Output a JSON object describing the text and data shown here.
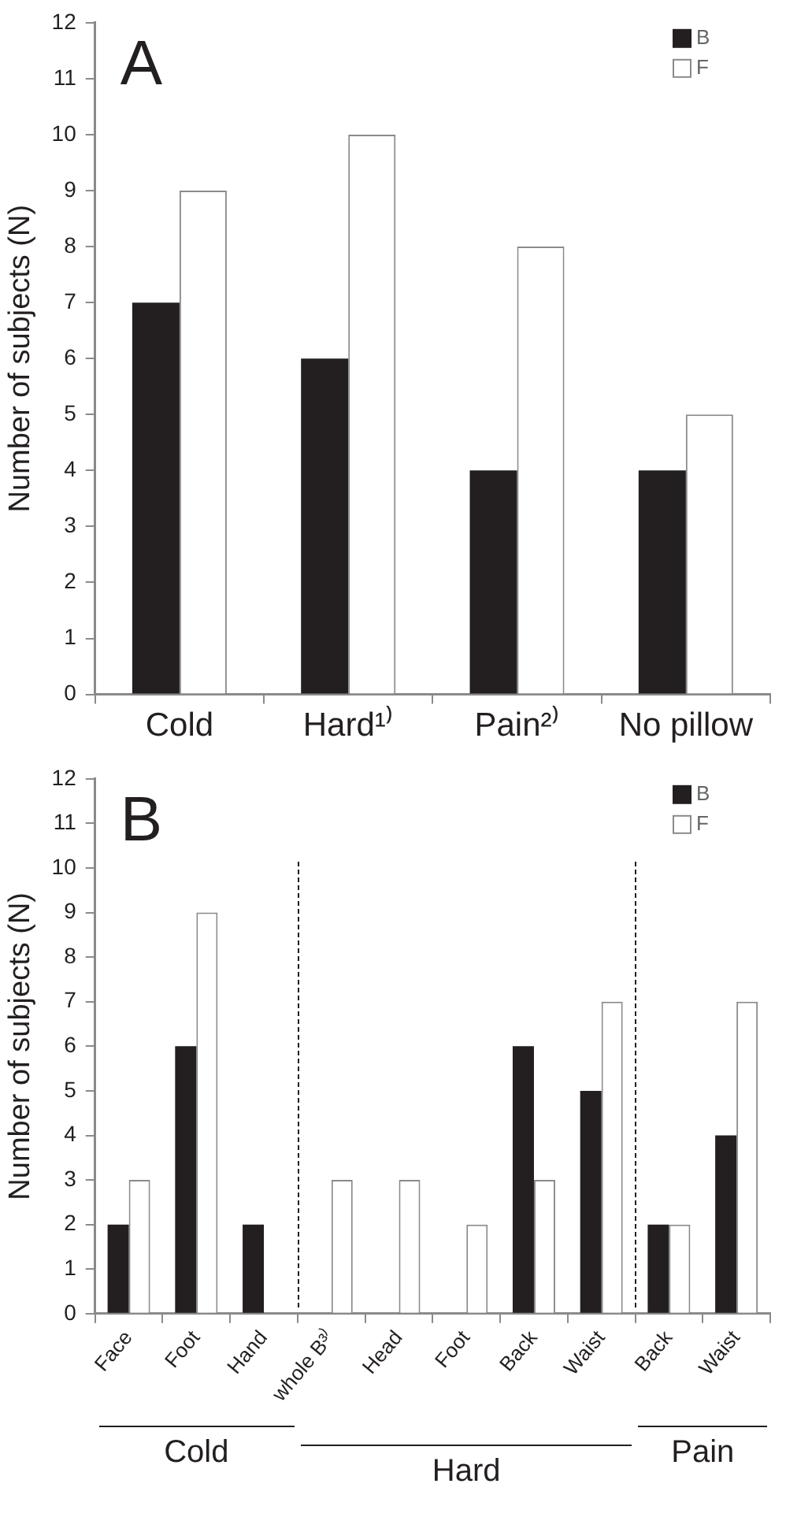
{
  "chart_data": [
    {
      "type": "bar",
      "title": "A",
      "ylabel": "Number of subjects (N)",
      "categories": [
        "Cold",
        "Hard¹⁾",
        "Pain²⁾",
        "No pillow"
      ],
      "series": [
        {
          "name": "B",
          "color": "#231f20",
          "values": [
            7,
            6,
            4,
            4
          ]
        },
        {
          "name": "F",
          "color": "#ffffff",
          "values": [
            9,
            10,
            8,
            5
          ]
        }
      ],
      "ylim": [
        0,
        12
      ],
      "yticks": [
        0,
        1,
        2,
        3,
        4,
        5,
        6,
        7,
        8,
        9,
        10,
        11,
        12
      ],
      "grid": false,
      "legend": "top right"
    },
    {
      "type": "bar",
      "title": "B",
      "ylabel": "Number of subjects (N)",
      "categories": [
        "Face",
        "Foot",
        "Hand",
        "whole B³⁾",
        "Head",
        "Foot",
        "Back",
        "Waist",
        "Back",
        "Waist"
      ],
      "series": [
        {
          "name": "B",
          "color": "#231f20",
          "values": [
            2,
            6,
            2,
            null,
            null,
            null,
            6,
            5,
            2,
            4
          ]
        },
        {
          "name": "F",
          "color": "#ffffff",
          "values": [
            3,
            9,
            null,
            3,
            3,
            2,
            3,
            7,
            2,
            7
          ]
        }
      ],
      "ylim": [
        0,
        12
      ],
      "yticks": [
        0,
        1,
        2,
        3,
        4,
        5,
        6,
        7,
        8,
        9,
        10,
        11,
        12
      ],
      "grid": false,
      "legend": "top right",
      "annotations": [
        "Cold",
        "Hard",
        "Pain"
      ]
    }
  ]
}
